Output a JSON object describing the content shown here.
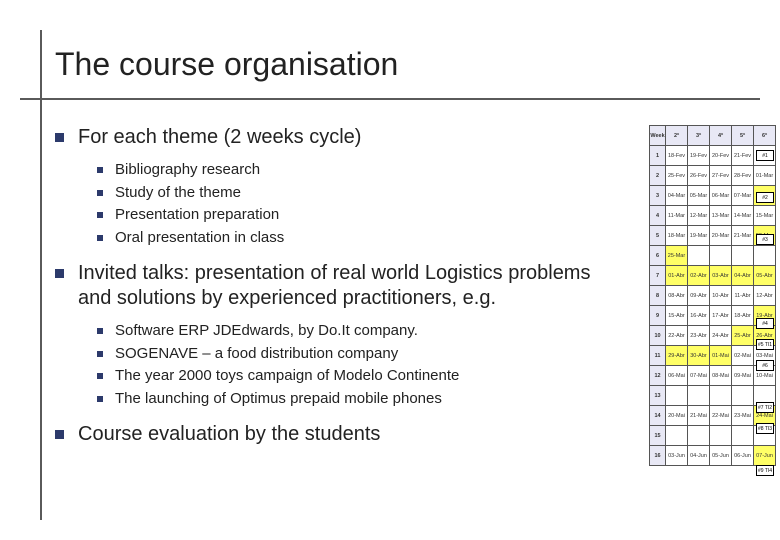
{
  "title": "The course organisation",
  "bullets": [
    {
      "text": "For each theme (2 weeks cycle)",
      "sub": [
        "Bibliography research",
        "Study of the theme",
        "Presentation preparation",
        "Oral presentation in class"
      ]
    },
    {
      "text": "Invited talks: presentation of real world Logistics problems and solutions by experienced practitioners, e.g.",
      "sub": [
        "Software ERP JDEdwards, by Do.It company.",
        "SOGENAVE – a food distribution company",
        "The year 2000 toys campaign of Modelo Continente",
        "The launching of Optimus prepaid mobile phones"
      ]
    },
    {
      "text": "Course evaluation by the students",
      "sub": []
    }
  ],
  "calendar": {
    "headers": [
      "Week",
      "2ª",
      "3ª",
      "4ª",
      "5ª",
      "6ª"
    ],
    "rows": [
      {
        "wk": "1",
        "cells": [
          "18-Fev",
          "19-Fev",
          "20-Fev",
          "21-Fev",
          "22-Fev"
        ],
        "hl": []
      },
      {
        "wk": "2",
        "cells": [
          "25-Fev",
          "26-Fev",
          "27-Fev",
          "28-Fev",
          "01-Mar"
        ],
        "hl": []
      },
      {
        "wk": "3",
        "cells": [
          "04-Mar",
          "05-Mar",
          "06-Mar",
          "07-Mar",
          "08-Mar"
        ],
        "hl": [
          4
        ]
      },
      {
        "wk": "4",
        "cells": [
          "11-Mar",
          "12-Mar",
          "13-Mar",
          "14-Mar",
          "15-Mar"
        ],
        "hl": []
      },
      {
        "wk": "5",
        "cells": [
          "18-Mar",
          "19-Mar",
          "20-Mar",
          "21-Mar",
          "22-Mar"
        ],
        "hl": [
          4
        ]
      },
      {
        "wk": "6",
        "cells": [
          "25-Mar",
          "",
          "",
          "",
          ""
        ],
        "hl": [
          0
        ]
      },
      {
        "wk": "7",
        "cells": [
          "01-Abr",
          "02-Abr",
          "03-Abr",
          "04-Abr",
          "05-Abr"
        ],
        "hl": [
          0,
          1,
          2,
          3,
          4
        ]
      },
      {
        "wk": "8",
        "cells": [
          "08-Abr",
          "09-Abr",
          "10-Abr",
          "11-Abr",
          "12-Abr"
        ],
        "hl": []
      },
      {
        "wk": "9",
        "cells": [
          "15-Abr",
          "16-Abr",
          "17-Abr",
          "18-Abr",
          "19-Abr"
        ],
        "hl": [
          4
        ]
      },
      {
        "wk": "10",
        "cells": [
          "22-Abr",
          "23-Abr",
          "24-Abr",
          "25-Abr",
          "26-Abr"
        ],
        "hl": [
          3,
          4
        ]
      },
      {
        "wk": "11",
        "cells": [
          "29-Abr",
          "30-Abr",
          "01-Mai",
          "02-Mai",
          "03-Mai"
        ],
        "hl": [
          0,
          1,
          2
        ]
      },
      {
        "wk": "12",
        "cells": [
          "06-Mai",
          "07-Mai",
          "08-Mai",
          "09-Mai",
          "10-Mai"
        ],
        "hl": []
      },
      {
        "wk": "13",
        "cells": [
          "",
          "",
          "",
          "",
          ""
        ],
        "hl": []
      },
      {
        "wk": "14",
        "cells": [
          "20-Mai",
          "21-Mai",
          "22-Mai",
          "23-Mai",
          "24-Mai"
        ],
        "hl": [
          4
        ]
      },
      {
        "wk": "15",
        "cells": [
          "",
          "",
          "",
          "",
          ""
        ],
        "hl": []
      },
      {
        "wk": "16",
        "cells": [
          "03-Jun",
          "04-Jun",
          "05-Jun",
          "06-Jun",
          "07-Jun"
        ],
        "hl": [
          4
        ]
      }
    ],
    "callouts": [
      {
        "row": 0,
        "label": "#1"
      },
      {
        "row": 2,
        "label": "#2"
      },
      {
        "row": 4,
        "label": "#3"
      },
      {
        "row": 8,
        "label": "#4"
      },
      {
        "row": 9,
        "label": "#5  TI1"
      },
      {
        "row": 10,
        "label": "#6"
      },
      {
        "row": 12,
        "label": "#7  TI2"
      },
      {
        "row": 13,
        "label": "#8  TI3"
      },
      {
        "row": 15,
        "label": "#9  TI4"
      }
    ],
    "colors": {
      "header_bg": "#e8e8f5",
      "highlight_bg": "#ffff66",
      "border": "#555555"
    }
  },
  "style": {
    "title_fontsize": 32,
    "bullet1_fontsize": 20,
    "bullet2_fontsize": 15,
    "bullet_color": "#2c3a6b",
    "text_color": "#222222",
    "frame_color": "#5a5a5a",
    "background": "#ffffff"
  }
}
